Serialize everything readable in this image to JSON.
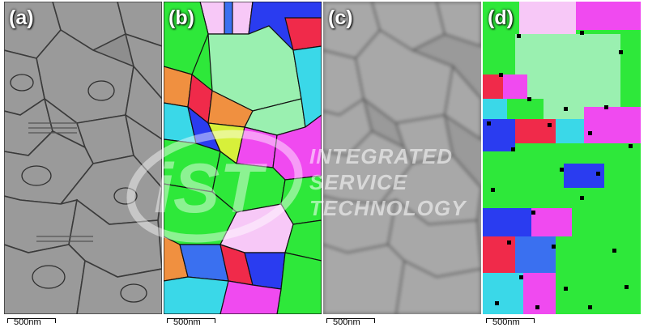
{
  "panels": [
    {
      "label": "(a)",
      "scale": "500nm",
      "kind": "sem"
    },
    {
      "label": "(b)",
      "scale": "500nm",
      "kind": "ebsd"
    },
    {
      "label": "(c)",
      "scale": "500nm",
      "kind": "sem-blur"
    },
    {
      "label": "(d)",
      "scale": "500nm",
      "kind": "ebsd-pixel"
    }
  ],
  "watermark": {
    "logo": "iST",
    "lines": [
      "INTEGRATED",
      "SERVICE",
      "TECHNOLOGY"
    ]
  },
  "colors": {
    "ebsd_green": "#2ee83a",
    "ebsd_light_green": "#9af0b0",
    "ebsd_blue": "#2a3cf0",
    "ebsd_magenta": "#f04af0",
    "ebsd_red": "#f02a4a",
    "ebsd_cyan": "#3ad8e8",
    "ebsd_orange": "#f09040",
    "ebsd_pink": "#f7c8f7",
    "sem_gray": "#8a8a8a"
  }
}
